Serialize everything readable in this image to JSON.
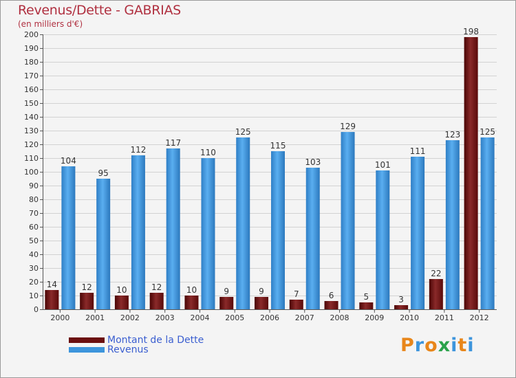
{
  "title": "Revenus/Dette - GABRIAS",
  "subtitle": "(en milliers d'€)",
  "legend": [
    {
      "label": "Montant de la Dette",
      "color": "#6b0f0f"
    },
    {
      "label": "Revenus",
      "color": "#3d95dc"
    }
  ],
  "logo": {
    "letters": [
      "P",
      "r",
      "o",
      "x",
      "i",
      "t",
      "i"
    ],
    "colors": [
      "#e8861a",
      "#3d95dc",
      "#e8861a",
      "#2aa24b",
      "#3d95dc",
      "#e8861a",
      "#3d95dc"
    ]
  },
  "chart_data": {
    "type": "bar",
    "title": "Revenus/Dette - GABRIAS",
    "ylabel": "(en milliers d'€)",
    "xlabel": "",
    "categories": [
      "2000",
      "2001",
      "2002",
      "2003",
      "2004",
      "2005",
      "2006",
      "2007",
      "2008",
      "2009",
      "2010",
      "2011",
      "2012"
    ],
    "series": [
      {
        "name": "Montant de la Dette",
        "color": "#6b0f0f",
        "values": [
          14,
          12,
          10,
          12,
          10,
          9,
          9,
          7,
          6,
          5,
          3,
          22,
          198
        ]
      },
      {
        "name": "Revenus",
        "color": "#3d95dc",
        "values": [
          104,
          95,
          112,
          117,
          110,
          125,
          115,
          103,
          129,
          101,
          111,
          123,
          125
        ]
      }
    ],
    "ylim": [
      0,
      200
    ],
    "yticks": [
      0,
      10,
      20,
      30,
      40,
      50,
      60,
      70,
      80,
      90,
      100,
      110,
      120,
      130,
      140,
      150,
      160,
      170,
      180,
      190,
      200
    ],
    "grid": true,
    "legend_position": "bottom-left"
  }
}
